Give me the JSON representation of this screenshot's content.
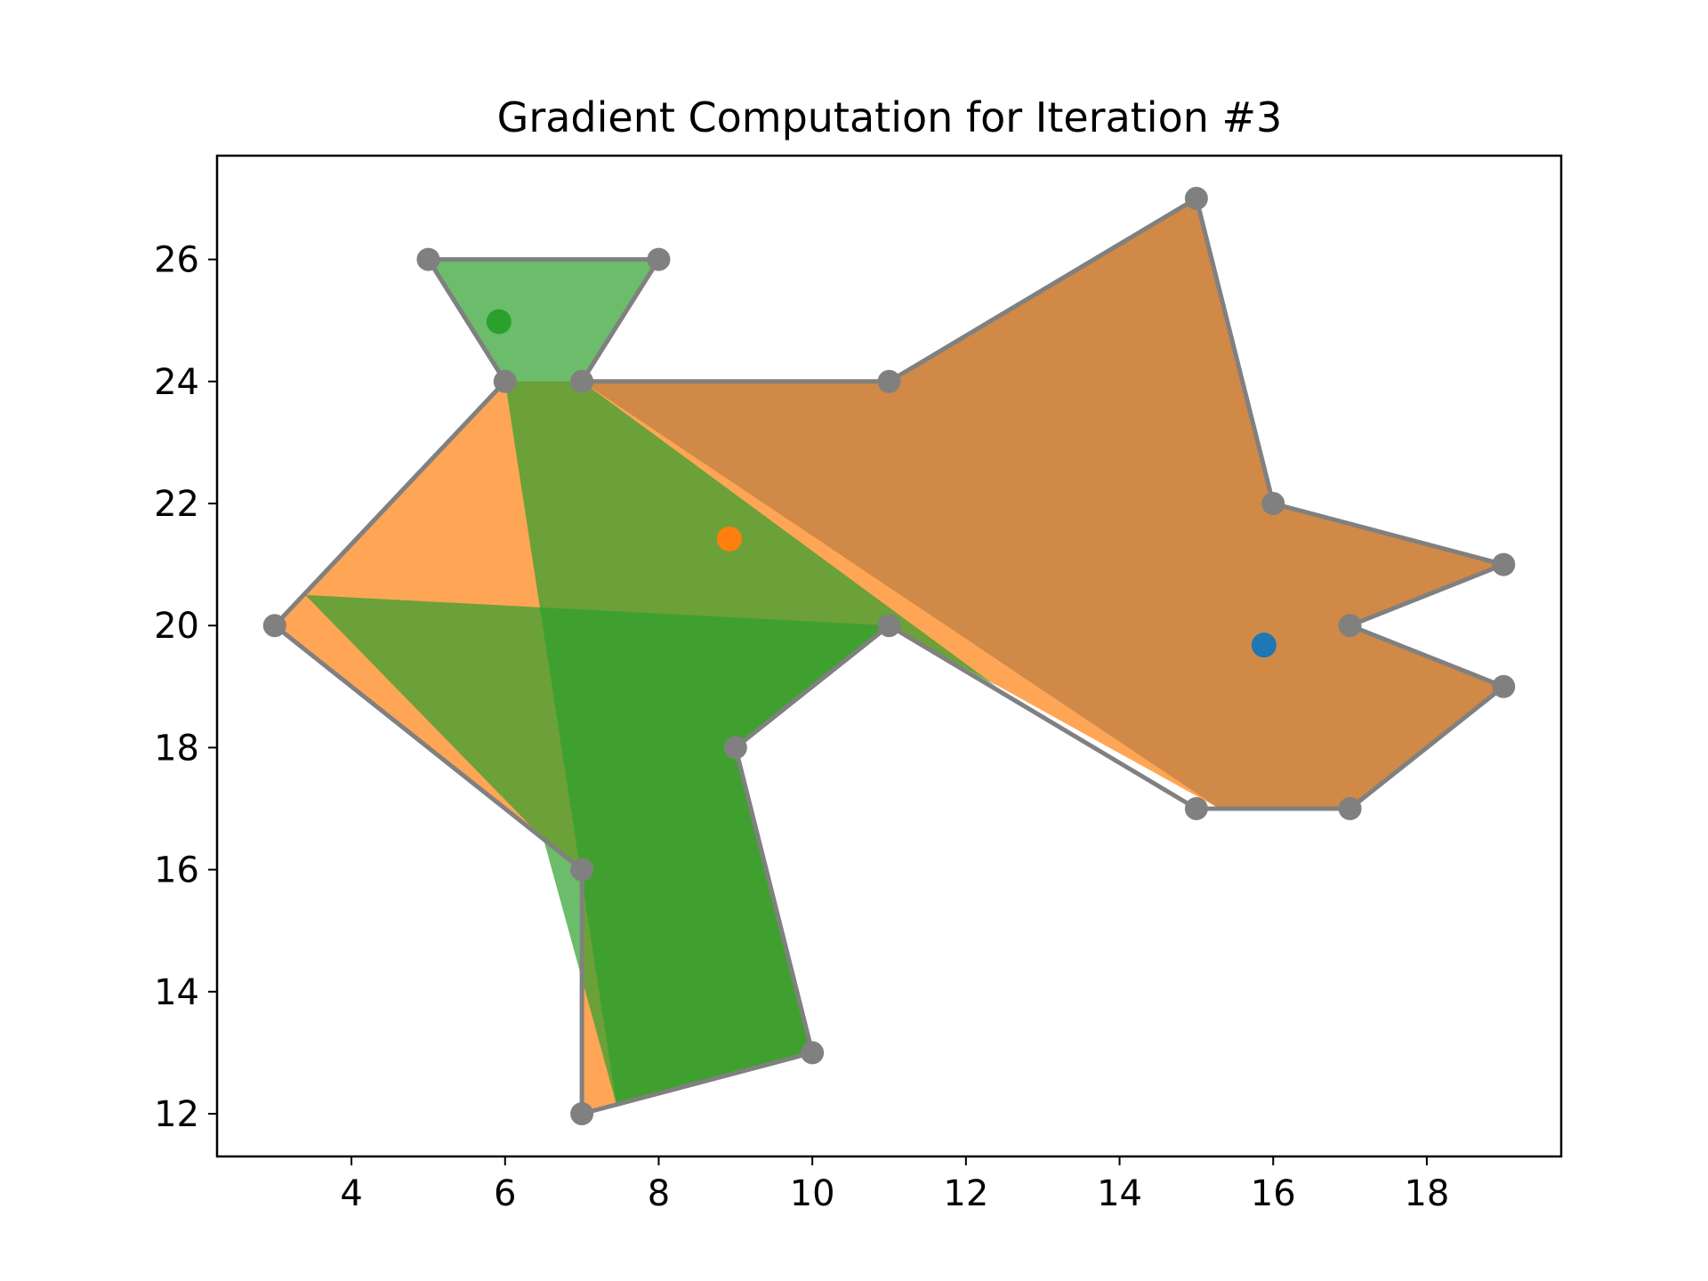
{
  "chart_data": {
    "type": "polygon-overlay",
    "title": "Gradient Computation for Iteration #3",
    "xlabel": "",
    "ylabel": "",
    "xlim": [
      2.25,
      19.75
    ],
    "ylim": [
      11.3,
      27.7
    ],
    "xticks": [
      4,
      6,
      8,
      10,
      12,
      14,
      16,
      18
    ],
    "yticks": [
      12,
      14,
      16,
      18,
      20,
      22,
      24,
      26
    ],
    "grid": false,
    "legend": "none",
    "outline_color": "#808080",
    "outline": [
      [
        15,
        27
      ],
      [
        16,
        22
      ],
      [
        19,
        21
      ],
      [
        17,
        20
      ],
      [
        19,
        19
      ],
      [
        17,
        17
      ],
      [
        15,
        17
      ],
      [
        11,
        20
      ],
      [
        9,
        18
      ],
      [
        10,
        13
      ],
      [
        7,
        12
      ],
      [
        7,
        16
      ],
      [
        3,
        20
      ],
      [
        6,
        24
      ],
      [
        5,
        26
      ],
      [
        8,
        26
      ],
      [
        7,
        24
      ],
      [
        11,
        24
      ]
    ],
    "regions": [
      {
        "color": "#1f77b4",
        "opacity": 0.7,
        "points": [
          [
            7,
            24
          ],
          [
            11,
            24
          ],
          [
            15,
            27
          ],
          [
            16,
            22
          ],
          [
            19,
            21
          ],
          [
            17,
            20
          ],
          [
            19,
            19
          ],
          [
            17,
            17
          ],
          [
            15.3,
            17
          ]
        ],
        "centroid": [
          15.88,
          19.68
        ]
      },
      {
        "color": "#ff7f0e",
        "opacity": 0.7,
        "points": [
          [
            7,
            24
          ],
          [
            11,
            24
          ],
          [
            15,
            27
          ],
          [
            16,
            22
          ],
          [
            19,
            21
          ],
          [
            17,
            20
          ],
          [
            19,
            19
          ],
          [
            17,
            17
          ],
          [
            15.3,
            17
          ],
          [
            11,
            20
          ],
          [
            9,
            18
          ],
          [
            10,
            13
          ],
          [
            7,
            12
          ],
          [
            7,
            16
          ],
          [
            3,
            20
          ],
          [
            6,
            24
          ]
        ],
        "centroid": [
          8.92,
          21.42
        ]
      },
      {
        "color": "#2ca02c",
        "opacity": 0.7,
        "points": [
          [
            5,
            26
          ],
          [
            8,
            26
          ],
          [
            7,
            24
          ],
          [
            12.4,
            19
          ],
          [
            11,
            20
          ],
          [
            9,
            18
          ],
          [
            10,
            13
          ],
          [
            7.45,
            12.15
          ],
          [
            6,
            24
          ]
        ],
        "centroid": [
          5.92,
          24.98
        ]
      },
      {
        "color": "#2ca02c",
        "opacity": 0.7,
        "points": [
          [
            3.4,
            20.5
          ],
          [
            11,
            20
          ],
          [
            9,
            18
          ],
          [
            10,
            13
          ],
          [
            7.45,
            12.15
          ],
          [
            6.5,
            16.5
          ]
        ],
        "centroid": null
      }
    ]
  }
}
